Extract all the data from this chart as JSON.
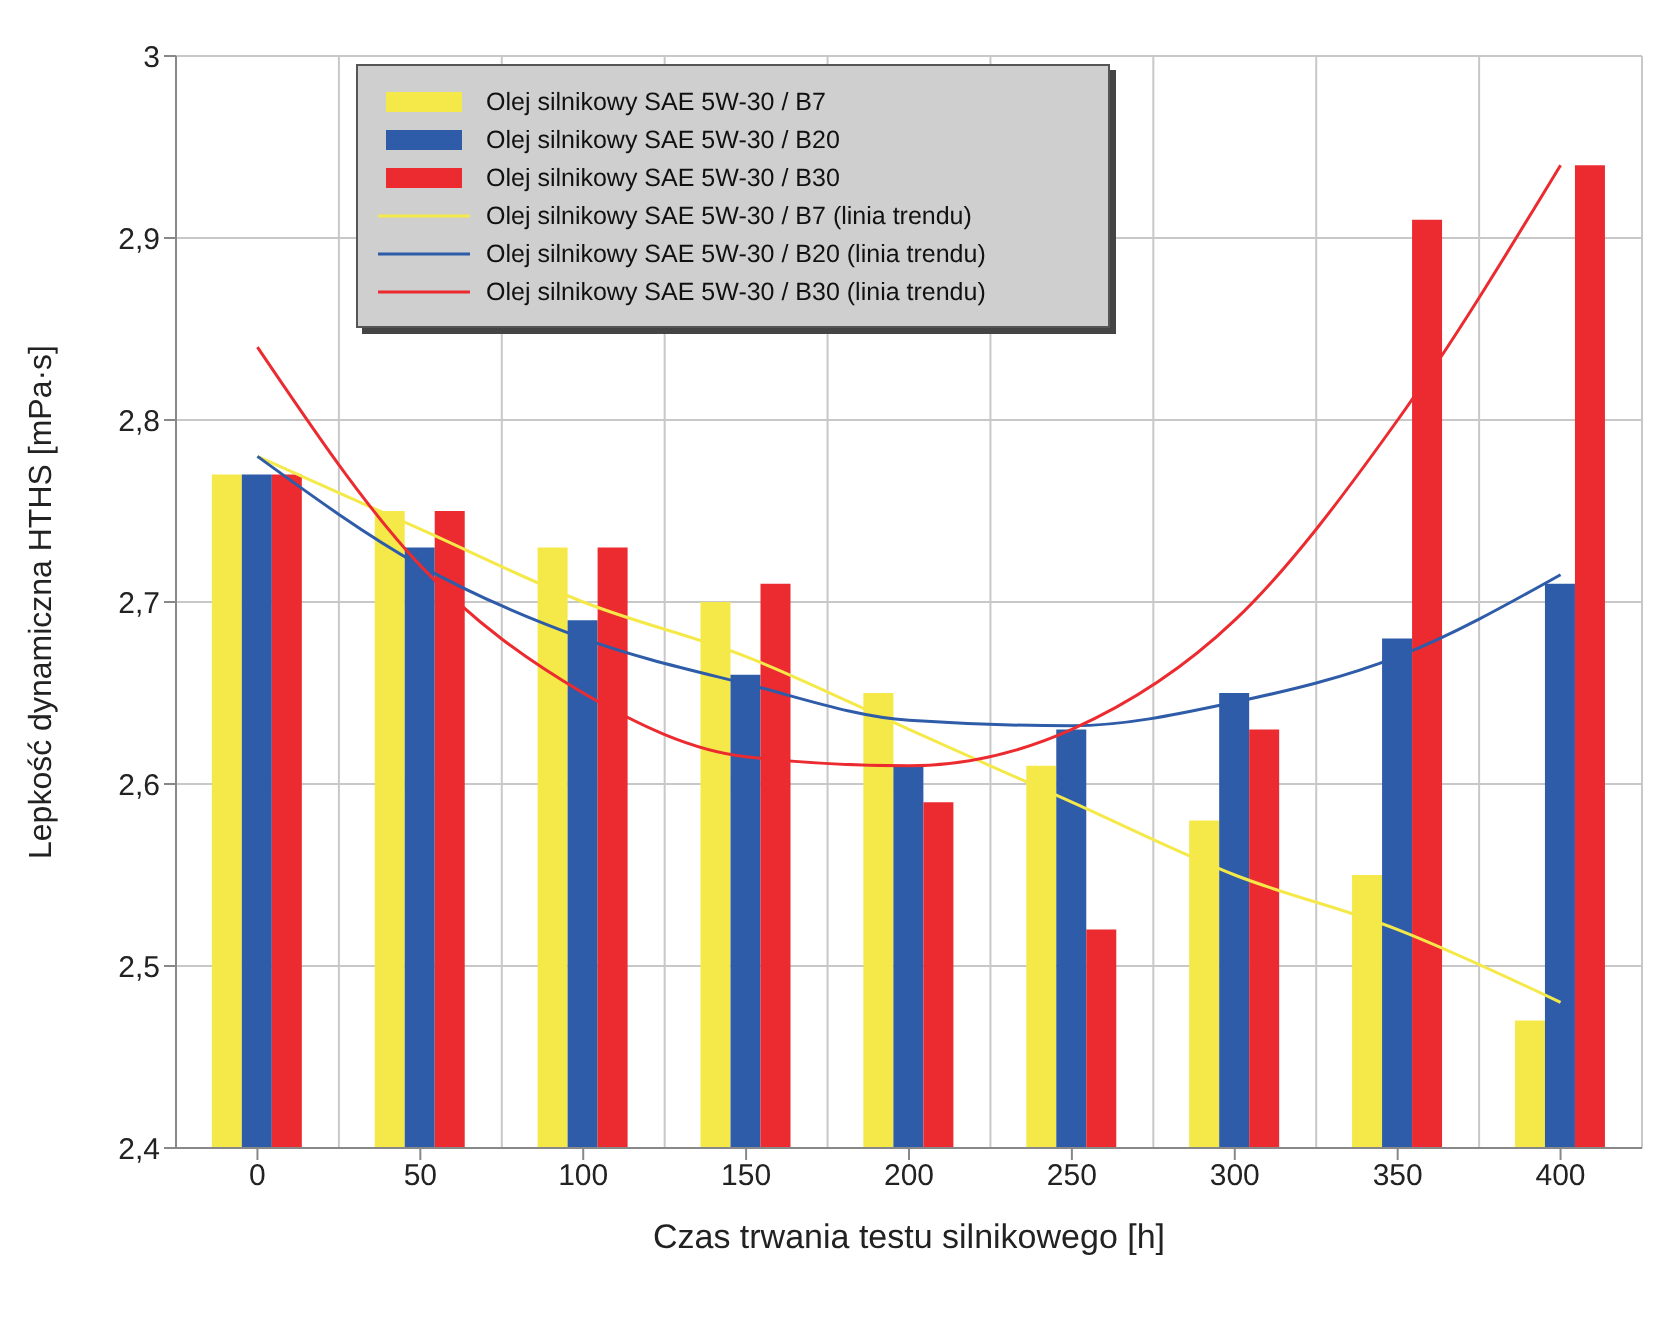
{
  "chart_data": {
    "type": "bar",
    "xlabel": "Czas trwania testu silnikowego [h]",
    "ylabel": "Lepkość dynamiczna HTHS [mPa·s]",
    "categories": [
      "0",
      "50",
      "100",
      "150",
      "200",
      "250",
      "300",
      "350",
      "400"
    ],
    "series": [
      {
        "name": "Olej silnikowy SAE 5W-30 / B7",
        "color": "#f5e94a",
        "values": [
          2.77,
          2.75,
          2.73,
          2.7,
          2.65,
          2.61,
          2.58,
          2.55,
          2.47
        ]
      },
      {
        "name": "Olej silnikowy SAE 5W-30 / B20",
        "color": "#2f5ca8",
        "values": [
          2.77,
          2.73,
          2.69,
          2.66,
          2.61,
          2.63,
          2.65,
          2.68,
          2.71
        ]
      },
      {
        "name": "Olej silnikowy SAE 5W-30 / B30",
        "color": "#ec2b30",
        "values": [
          2.77,
          2.75,
          2.73,
          2.71,
          2.59,
          2.52,
          2.63,
          2.91,
          2.94
        ]
      },
      {
        "name": "Olej silnikowy SAE 5W-30 / B7 (linia trendu)",
        "type": "line",
        "color": "#f5e94a",
        "values": [
          2.78,
          2.74,
          2.7,
          2.67,
          2.63,
          2.59,
          2.55,
          2.52,
          2.48
        ]
      },
      {
        "name": "Olej silnikowy SAE 5W-30 / B20 (linia trendu)",
        "type": "line",
        "color": "#2f5ca8",
        "values": [
          2.78,
          2.72,
          2.68,
          2.655,
          2.635,
          2.632,
          2.645,
          2.67,
          2.715
        ]
      },
      {
        "name": "Olej silnikowy SAE 5W-30 / B30 (linia trendu)",
        "type": "line",
        "color": "#ec2b30",
        "values": [
          2.84,
          2.72,
          2.65,
          2.615,
          2.61,
          2.63,
          2.69,
          2.8,
          2.94
        ]
      }
    ],
    "ylim": [
      2.4,
      3
    ],
    "yticks": [
      {
        "value": 2.4,
        "label": "2,4"
      },
      {
        "value": 2.5,
        "label": "2,5"
      },
      {
        "value": 2.6,
        "label": "2,6"
      },
      {
        "value": 2.7,
        "label": "2,7"
      },
      {
        "value": 2.8,
        "label": "2,8"
      },
      {
        "value": 2.9,
        "label": "2,9"
      },
      {
        "value": 3,
        "label": "3"
      }
    ],
    "grid": true,
    "legend": "top left",
    "marker": "none",
    "line_style": "solid"
  }
}
